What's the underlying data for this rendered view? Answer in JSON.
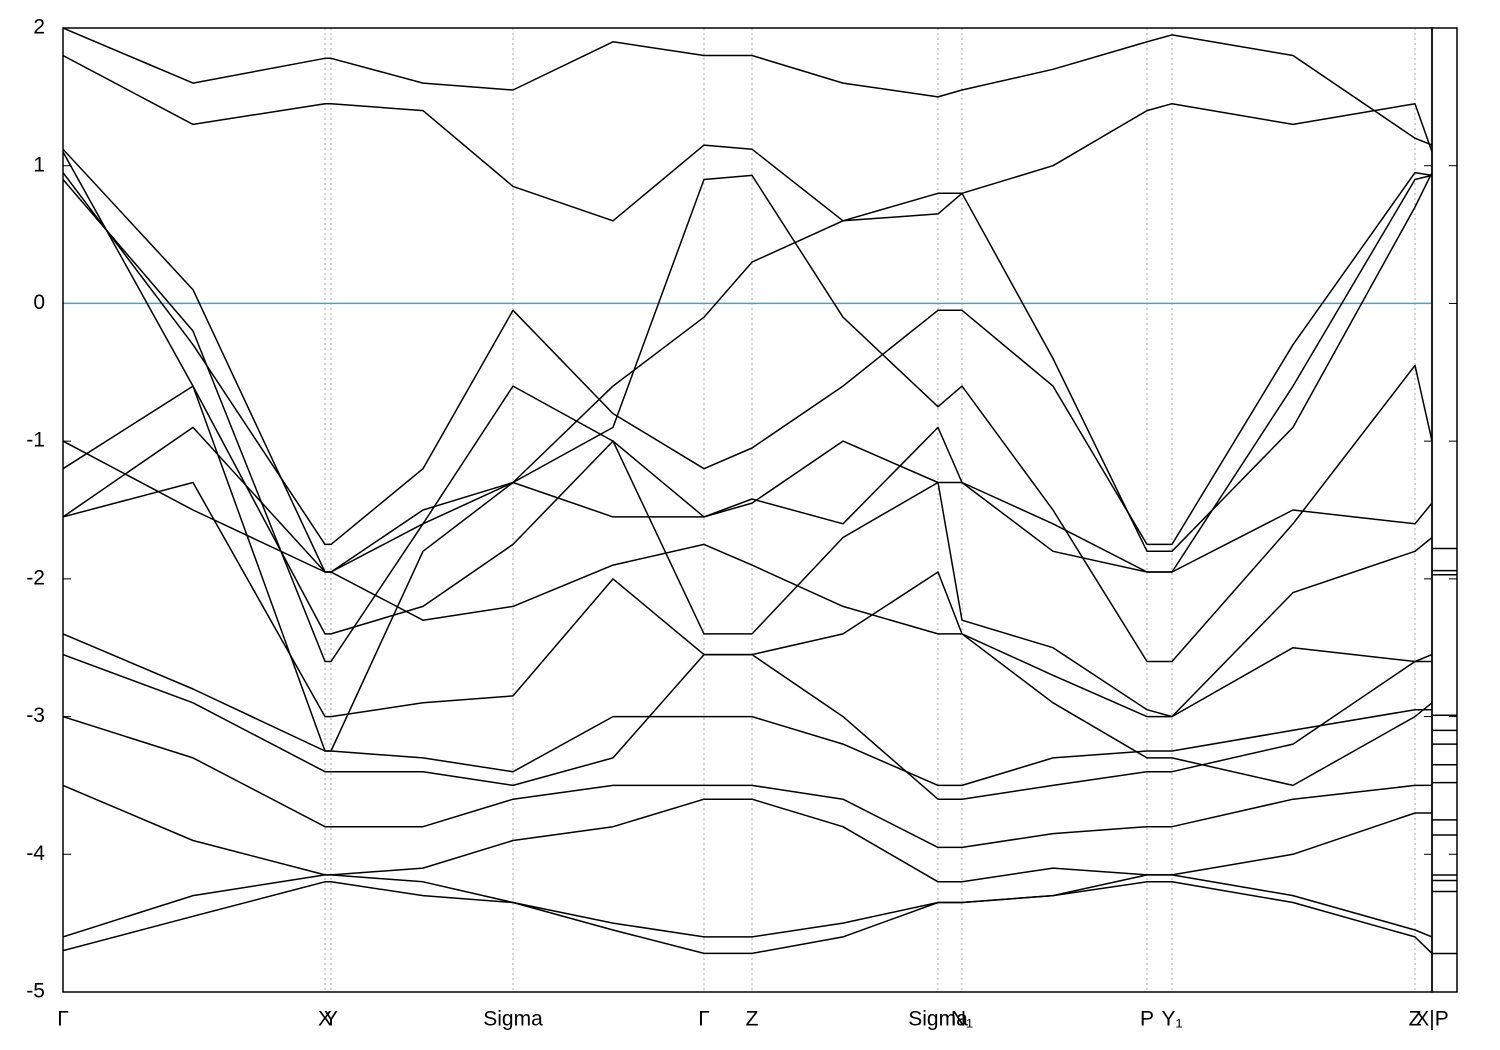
{
  "chart_data": {
    "type": "line",
    "x": [
      0,
      0.13,
      0.262,
      0.268,
      0.36,
      0.45,
      0.55,
      0.641,
      0.689,
      0.78,
      0.875,
      0.899,
      0.99,
      1.084,
      1.109,
      1.23,
      1.352,
      1.369
    ],
    "xlim": [
      0,
      1.369
    ],
    "xticks": [
      {
        "value": 0,
        "label": "Γ"
      },
      {
        "value": 0.262,
        "label": "X"
      },
      {
        "value": 0.268,
        "label": "Y"
      },
      {
        "value": 0.45,
        "label": "Sigma"
      },
      {
        "value": 0.641,
        "label": "Γ"
      },
      {
        "value": 0.689,
        "label": "Z"
      },
      {
        "value": 0.875,
        "label": "Sigma"
      },
      {
        "value": 0.899,
        "label": "N₁"
      },
      {
        "value": 1.084,
        "label": "P"
      },
      {
        "value": 1.109,
        "label": "Y₁"
      },
      {
        "value": 1.352,
        "label": "Z"
      },
      {
        "value": 1.369,
        "label": "X|P"
      }
    ],
    "ylim": [
      -5,
      2
    ],
    "yticks": [
      2,
      1,
      0,
      -1,
      -2,
      -3,
      -4,
      -5
    ],
    "fermi_level": 0,
    "fermi_color": "#4ba3c3",
    "grid": true,
    "series": [
      {
        "color": "#000000",
        "values": [
          0.95,
          -0.3,
          -1.75,
          -1.75,
          -1.2,
          -0.05,
          -0.8,
          -1.2,
          -1.05,
          -0.6,
          -0.05,
          -0.05,
          -0.6,
          -1.75,
          -1.75,
          -0.3,
          0.95,
          0.93
        ]
      },
      {
        "color": "#000000",
        "values": [
          1.12,
          0.1,
          -1.95,
          -1.95,
          -1.5,
          -1.3,
          -1.55,
          -1.55,
          -1.45,
          -1.0,
          -1.3,
          -1.3,
          -1.6,
          -1.95,
          -1.95,
          -0.6,
          0.9,
          0.93
        ]
      },
      {
        "color": "#000000",
        "values": [
          1.8,
          1.3,
          1.45,
          1.45,
          1.4,
          0.85,
          0.6,
          1.15,
          1.12,
          0.6,
          0.65,
          0.8,
          1.0,
          1.4,
          1.45,
          1.3,
          1.45,
          1.1
        ]
      },
      {
        "color": "#000000",
        "values": [
          2.0,
          1.6,
          1.78,
          1.78,
          1.6,
          1.55,
          1.9,
          1.8,
          1.8,
          1.6,
          1.5,
          1.55,
          1.7,
          1.9,
          1.95,
          1.8,
          1.2,
          1.15
        ]
      },
      {
        "color": "#000000",
        "values": [
          0.9,
          -0.2,
          -2.6,
          -2.6,
          -1.6,
          -1.3,
          -0.9,
          0.9,
          0.93,
          -0.1,
          -0.75,
          -0.6,
          -1.5,
          -2.6,
          -2.6,
          -1.6,
          -0.45,
          -1.0
        ]
      },
      {
        "color": "#000000",
        "values": [
          -1.55,
          -0.9,
          -1.95,
          -1.95,
          -1.6,
          -0.6,
          -1.0,
          -1.55,
          -1.42,
          -1.6,
          -0.9,
          -1.3,
          -1.8,
          -1.95,
          -1.95,
          -1.5,
          -1.6,
          -1.45
        ]
      },
      {
        "color": "#000000",
        "values": [
          -1.55,
          -1.3,
          -3.0,
          -3.0,
          -2.9,
          -2.85,
          -2.0,
          -2.55,
          -2.55,
          -2.4,
          -1.95,
          -2.4,
          -2.7,
          -3.0,
          -3.0,
          -2.5,
          -2.6,
          -2.55
        ]
      },
      {
        "color": "#000000",
        "values": [
          -2.4,
          -2.8,
          -3.25,
          -3.25,
          -3.3,
          -3.4,
          -3.0,
          -3.0,
          -3.0,
          -3.2,
          -3.5,
          -3.5,
          -3.3,
          -3.25,
          -3.25,
          -3.1,
          -2.95,
          -2.95
        ]
      },
      {
        "color": "#000000",
        "values": [
          -2.55,
          -2.9,
          -3.4,
          -3.4,
          -3.4,
          -3.5,
          -3.3,
          -2.55,
          -2.55,
          -3.0,
          -3.6,
          -3.6,
          -3.5,
          -3.4,
          -3.4,
          -3.2,
          -2.6,
          -2.6
        ]
      },
      {
        "color": "#000000",
        "values": [
          -3.0,
          -3.3,
          -3.8,
          -3.8,
          -3.8,
          -3.6,
          -3.5,
          -3.5,
          -3.5,
          -3.6,
          -3.95,
          -3.95,
          -3.85,
          -3.8,
          -3.8,
          -3.6,
          -3.5,
          -3.5
        ]
      },
      {
        "color": "#000000",
        "values": [
          -3.5,
          -3.9,
          -4.15,
          -4.15,
          -4.1,
          -3.9,
          -3.8,
          -3.6,
          -3.6,
          -3.8,
          -4.2,
          -4.2,
          -4.1,
          -4.15,
          -4.15,
          -4.0,
          -3.7,
          -3.7
        ]
      },
      {
        "color": "#000000",
        "values": [
          -4.6,
          -4.3,
          -4.15,
          -4.15,
          -4.2,
          -4.35,
          -4.5,
          -4.6,
          -4.6,
          -4.5,
          -4.35,
          -4.35,
          -4.3,
          -4.15,
          -4.15,
          -4.3,
          -4.55,
          -4.6
        ]
      },
      {
        "color": "#000000",
        "values": [
          -4.7,
          -4.45,
          -4.2,
          -4.2,
          -4.3,
          -4.35,
          -4.55,
          -4.72,
          -4.72,
          -4.6,
          -4.35,
          -4.35,
          -4.3,
          -4.2,
          -4.2,
          -4.35,
          -4.6,
          -4.72
        ]
      },
      {
        "color": "#000000",
        "values": [
          1.1,
          -0.6,
          -3.25,
          -3.25,
          -1.8,
          -1.3,
          -0.6,
          -0.1,
          0.3,
          0.6,
          0.8,
          0.8,
          -0.4,
          -1.8,
          -1.8,
          -0.9,
          0.7,
          0.95
        ]
      },
      {
        "color": "#000000",
        "values": [
          -1.2,
          -0.6,
          -2.4,
          -2.4,
          -2.2,
          -1.75,
          -1.0,
          -2.4,
          -2.4,
          -1.7,
          -1.3,
          -2.3,
          -2.5,
          -2.95,
          -3.0,
          -2.1,
          -1.8,
          -1.7
        ]
      },
      {
        "color": "#000000",
        "values": [
          -1.0,
          -1.5,
          -1.95,
          -1.95,
          -2.3,
          -2.2,
          -1.9,
          -1.75,
          -1.9,
          -2.2,
          -2.4,
          -2.4,
          -2.9,
          -3.3,
          -3.3,
          -3.5,
          -3.0,
          -2.9
        ]
      }
    ],
    "side_levels": [
      -1.78,
      -1.94,
      -1.97,
      -2.99,
      -3.1,
      -3.2,
      -3.35,
      -3.48,
      -3.75,
      -3.86,
      -4.15,
      -4.19,
      -4.27,
      -4.72
    ]
  }
}
